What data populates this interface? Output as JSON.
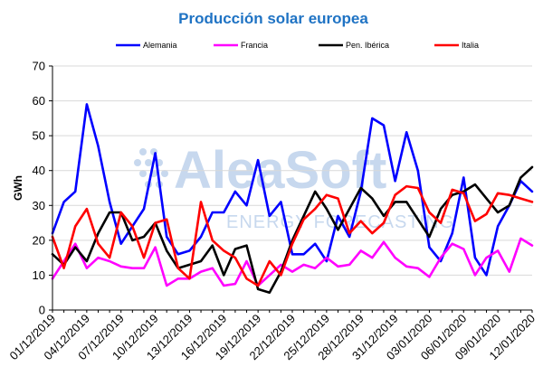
{
  "chart_data": {
    "type": "line",
    "title": "Producción solar europea",
    "ylabel": "GWh",
    "xlabel": "",
    "ylim": [
      0,
      70
    ],
    "y_ticks": [
      0,
      10,
      20,
      30,
      40,
      50,
      60,
      70
    ],
    "grid": true,
    "legend_position": "top",
    "x": [
      "01/12/2019",
      "02/12/2019",
      "03/12/2019",
      "04/12/2019",
      "05/12/2019",
      "06/12/2019",
      "07/12/2019",
      "08/12/2019",
      "09/12/2019",
      "10/12/2019",
      "11/12/2019",
      "12/12/2019",
      "13/12/2019",
      "14/12/2019",
      "15/12/2019",
      "16/12/2019",
      "17/12/2019",
      "18/12/2019",
      "19/12/2019",
      "20/12/2019",
      "21/12/2019",
      "22/12/2019",
      "23/12/2019",
      "24/12/2019",
      "25/12/2019",
      "26/12/2019",
      "27/12/2019",
      "28/12/2019",
      "29/12/2019",
      "30/12/2019",
      "31/12/2019",
      "01/01/2020",
      "02/01/2020",
      "03/01/2020",
      "04/01/2020",
      "05/01/2020",
      "06/01/2020",
      "07/01/2020",
      "08/01/2020",
      "09/01/2020",
      "10/01/2020",
      "11/01/2020",
      "12/01/2020"
    ],
    "x_ticks": [
      "01/12/2019",
      "04/12/2019",
      "07/12/2019",
      "10/12/2019",
      "13/12/2019",
      "16/12/2019",
      "19/12/2019",
      "22/12/2019",
      "25/12/2019",
      "28/12/2019",
      "31/12/2019",
      "03/01/2020",
      "06/01/2020",
      "09/01/2020",
      "12/01/2020"
    ],
    "series": [
      {
        "name": "Alemania",
        "color": "#0000ff",
        "values": [
          22,
          31,
          34,
          59,
          47,
          31,
          19,
          24,
          29,
          45,
          21,
          16,
          17,
          21,
          28,
          28,
          34,
          30,
          43,
          27,
          31,
          16,
          16,
          19,
          14,
          27,
          21,
          34,
          55,
          53,
          37,
          51,
          40,
          18,
          14,
          22,
          38,
          15,
          10,
          24,
          30,
          37,
          34
        ]
      },
      {
        "name": "Francia",
        "color": "#ff00ff",
        "values": [
          9,
          14,
          19,
          12,
          15,
          14,
          12.5,
          12,
          12,
          18,
          7,
          9,
          9,
          11,
          12,
          7,
          7.5,
          14,
          7,
          10,
          13,
          11,
          13,
          12,
          15,
          12.5,
          13,
          17,
          15,
          19.5,
          15,
          12.5,
          12,
          9.5,
          15,
          19,
          17.5,
          10,
          15,
          17,
          11,
          20.5,
          18.5
        ]
      },
      {
        "name": "Pen. Ibérica",
        "color": "#000000",
        "values": [
          16,
          13,
          18,
          14,
          22,
          28,
          28,
          20,
          21,
          25,
          17,
          12,
          13,
          14,
          18.5,
          10,
          17.5,
          18.5,
          6,
          5,
          11,
          20,
          27,
          34,
          29,
          23,
          29,
          35,
          32,
          27,
          31,
          31,
          26,
          21,
          29,
          33,
          34,
          36,
          32,
          28,
          30,
          38,
          41
        ]
      },
      {
        "name": "Italia",
        "color": "#ff0000",
        "values": [
          21,
          12,
          24,
          29,
          19,
          15,
          28,
          24,
          15,
          25,
          26,
          12,
          9,
          31,
          20,
          17,
          15,
          9,
          7,
          14,
          10,
          19,
          26,
          29,
          33,
          32,
          22,
          25.5,
          22,
          25,
          33,
          35.5,
          35,
          28,
          25,
          34.5,
          33.5,
          25.5,
          27.5,
          33.5,
          33,
          32,
          31
        ]
      }
    ]
  },
  "colors": {
    "title": "#1f73c4",
    "grid": "#d9d9d9",
    "watermark": "#c7d8ee"
  },
  "watermark": {
    "brand": "AleaSoft",
    "tagline": "ENERGY FORECASTING"
  }
}
